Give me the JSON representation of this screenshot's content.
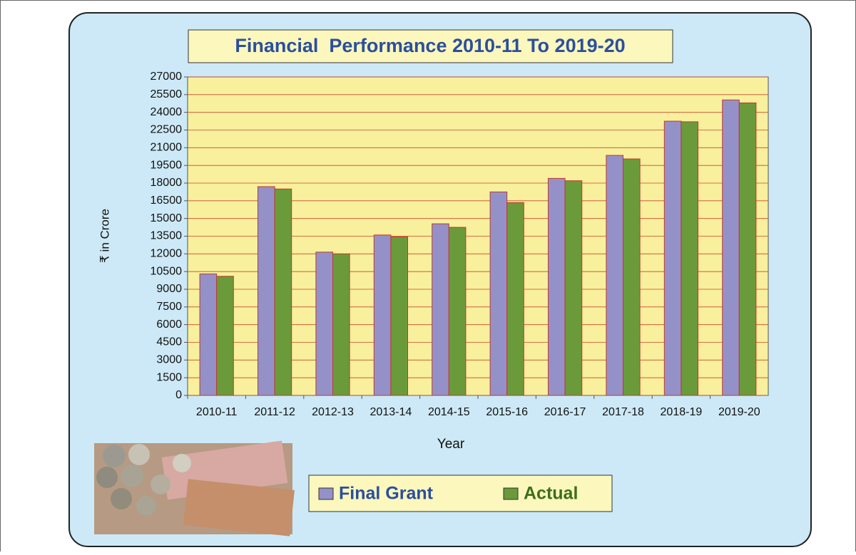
{
  "chart_data": {
    "type": "bar",
    "title": "Financial  Performance 2010-11 To 2019-20",
    "x_label": "Year",
    "y_label": "₹ in Crore",
    "categories": [
      "2010-11",
      "2011-12",
      "2012-13",
      "2013-14",
      "2014-15",
      "2015-16",
      "2016-17",
      "2017-18",
      "2018-19",
      "2019-20"
    ],
    "series": [
      {
        "name": "Final Grant",
        "color": "#9491c9",
        "values": [
          10300,
          17700,
          12150,
          13600,
          14550,
          17250,
          18400,
          20350,
          23250,
          25050
        ]
      },
      {
        "name": "Actual",
        "color": "#6b9a3a",
        "values": [
          10100,
          17500,
          12000,
          13450,
          14250,
          16350,
          18200,
          20050,
          23200,
          24800
        ]
      }
    ],
    "ylim": [
      0,
      27000
    ],
    "yticks": [
      0,
      1500,
      3000,
      4500,
      6000,
      7500,
      9000,
      10500,
      12000,
      13500,
      15000,
      16500,
      18000,
      19500,
      21000,
      22500,
      24000,
      25500,
      27000
    ],
    "grid": true,
    "legend": "bottom"
  }
}
